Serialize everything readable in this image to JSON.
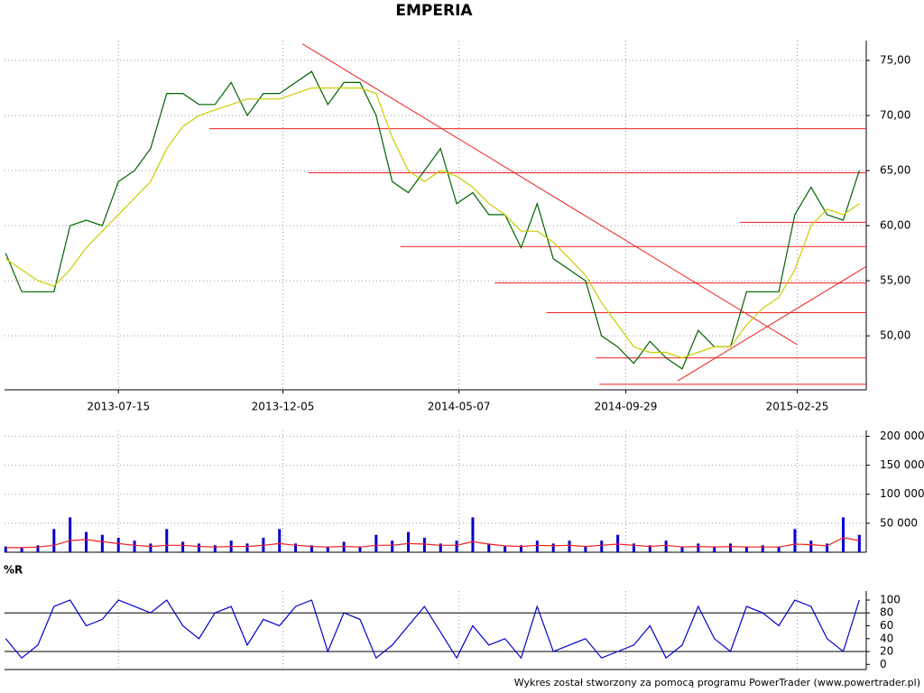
{
  "chart_data": [
    {
      "type": "line",
      "title": "EMPERIA",
      "x": [
        "2013-04-08",
        "2013-04-22",
        "2013-05-06",
        "2013-05-20",
        "2013-06-03",
        "2013-06-17",
        "2013-07-01",
        "2013-07-15",
        "2013-07-29",
        "2013-08-12",
        "2013-08-26",
        "2013-09-09",
        "2013-09-23",
        "2013-10-07",
        "2013-10-21",
        "2013-11-04",
        "2013-11-18",
        "2013-12-02",
        "2013-12-16",
        "2013-12-30",
        "2014-01-13",
        "2014-01-27",
        "2014-02-10",
        "2014-02-24",
        "2014-03-10",
        "2014-03-24",
        "2014-04-07",
        "2014-04-21",
        "2014-05-05",
        "2014-05-19",
        "2014-06-02",
        "2014-06-16",
        "2014-06-30",
        "2014-07-14",
        "2014-07-28",
        "2014-08-11",
        "2014-08-25",
        "2014-09-08",
        "2014-09-22",
        "2014-10-06",
        "2014-10-20",
        "2014-11-03",
        "2014-11-17",
        "2014-12-01",
        "2014-12-15",
        "2014-12-29",
        "2015-01-12",
        "2015-01-26",
        "2015-02-09",
        "2015-02-23",
        "2015-03-09",
        "2015-03-23",
        "2015-04-06",
        "2015-04-20"
      ],
      "series": [
        {
          "color": "#006400",
          "values": [
            57.5,
            54,
            54,
            54,
            60,
            60.5,
            60,
            64,
            65,
            67,
            72,
            72,
            71,
            71,
            73,
            70,
            72,
            72,
            73,
            74,
            71,
            73,
            73,
            70,
            64,
            63,
            65,
            67,
            62,
            63,
            61,
            61,
            58,
            62,
            57,
            56,
            55,
            50,
            49,
            47.5,
            49.5,
            48,
            47,
            50.5,
            49,
            49,
            54,
            54,
            54,
            61,
            63.5,
            61,
            60.5,
            65
          ]
        },
        {
          "color": "#cccc00",
          "values": [
            57,
            56,
            55,
            54.5,
            56,
            58,
            59.5,
            61,
            62.5,
            64,
            67,
            69,
            70,
            70.5,
            71,
            71.5,
            71.5,
            71.5,
            72,
            72.5,
            72.5,
            72.5,
            72.5,
            72,
            68,
            65,
            64,
            65,
            64.5,
            63.5,
            62,
            61,
            59.5,
            59.5,
            58.5,
            57,
            55.5,
            53,
            51,
            49,
            48.5,
            48.5,
            48,
            48.5,
            49,
            49,
            51,
            52.5,
            53.5,
            56,
            60,
            61.5,
            61,
            62
          ]
        }
      ],
      "xlim": [
        "2013-04-07",
        "2015-04-26"
      ],
      "xticks": [
        "2013-07-15",
        "2013-12-05",
        "2014-05-07",
        "2014-09-29",
        "2015-02-25"
      ],
      "ylim": [
        45.1,
        76.8
      ],
      "yticks": [
        {
          "value": 50,
          "label": "50,00"
        },
        {
          "value": 55,
          "label": "55,00"
        },
        {
          "value": 60,
          "label": "60,00"
        },
        {
          "value": 65,
          "label": "65,00"
        },
        {
          "value": 70,
          "label": "70,00"
        },
        {
          "value": 75,
          "label": "75,00"
        }
      ],
      "grid": true,
      "line_color": "#ee2222",
      "levels": [
        {
          "value": 68.8,
          "start": "2013-10-02"
        },
        {
          "value": 64.8,
          "start": "2013-12-27"
        },
        {
          "value": 60.3,
          "start": "2015-01-06"
        },
        {
          "value": 58.1,
          "start": "2014-03-17"
        },
        {
          "value": 54.8,
          "start": "2014-06-07"
        },
        {
          "value": 52.1,
          "start": "2014-07-22"
        },
        {
          "value": 48.0,
          "start": "2014-09-03"
        },
        {
          "value": 45.6,
          "start": "2014-09-06"
        }
      ],
      "trendlines": [
        {
          "x": [
            "2013-12-22",
            "2015-02-25"
          ],
          "y": [
            76.5,
            49.2
          ]
        },
        {
          "x": [
            "2014-11-13",
            "2015-04-26"
          ],
          "y": [
            45.9,
            56.3
          ]
        }
      ]
    },
    {
      "type": "bar",
      "series": [
        {
          "color": "#0000cc",
          "values": [
            10000,
            8000,
            12000,
            40000,
            60000,
            35000,
            30000,
            25000,
            20000,
            15000,
            40000,
            18000,
            15000,
            12000,
            20000,
            15000,
            25000,
            40000,
            15000,
            12000,
            10000,
            18000,
            10000,
            30000,
            20000,
            35000,
            25000,
            15000,
            20000,
            60000,
            15000,
            10000,
            12000,
            20000,
            15000,
            20000,
            10000,
            20000,
            30000,
            15000,
            12000,
            20000,
            10000,
            15000,
            10000,
            15000,
            10000,
            12000,
            10000,
            40000,
            20000,
            15000,
            60000,
            30000
          ]
        },
        {
          "color": "#ee2222",
          "values": [
            8000,
            8000,
            9000,
            12000,
            20000,
            22000,
            18000,
            15000,
            12000,
            10000,
            12000,
            12000,
            10000,
            9000,
            10000,
            10000,
            12000,
            15000,
            12000,
            10000,
            9000,
            10000,
            9000,
            12000,
            12000,
            15000,
            14000,
            12000,
            12000,
            18000,
            14000,
            11000,
            10000,
            12000,
            11000,
            12000,
            10000,
            12000,
            14000,
            12000,
            10000,
            12000,
            9000,
            10000,
            9000,
            10000,
            9000,
            9000,
            9000,
            14000,
            13000,
            11000,
            25000,
            20000
          ]
        }
      ],
      "ylim": [
        0,
        210000
      ],
      "yticks": [
        {
          "value": 50000,
          "label": "50 000"
        },
        {
          "value": 100000,
          "label": "100 000"
        },
        {
          "value": 150000,
          "label": "150 000"
        },
        {
          "value": 200000,
          "label": "200 000"
        }
      ],
      "grid": true
    },
    {
      "type": "line",
      "title": "%R",
      "series": [
        {
          "color": "#0000cc",
          "values": [
            40,
            10,
            30,
            90,
            100,
            60,
            70,
            100,
            90,
            80,
            100,
            60,
            40,
            80,
            90,
            30,
            70,
            60,
            90,
            100,
            20,
            80,
            70,
            10,
            30,
            60,
            90,
            50,
            10,
            60,
            30,
            40,
            10,
            90,
            20,
            30,
            40,
            10,
            20,
            30,
            60,
            10,
            30,
            90,
            40,
            20,
            90,
            80,
            60,
            100,
            90,
            40,
            20,
            100
          ]
        }
      ],
      "ylim": [
        -8,
        114
      ],
      "yticks": [
        0,
        20,
        40,
        60,
        80,
        100
      ],
      "levels": [
        {
          "value": 80
        },
        {
          "value": 20
        }
      ],
      "line_color": "#000000",
      "grid": true
    }
  ],
  "footer": "Wykres został stworzony za pomocą programu PowerTrader (www.powertrader.pl)"
}
